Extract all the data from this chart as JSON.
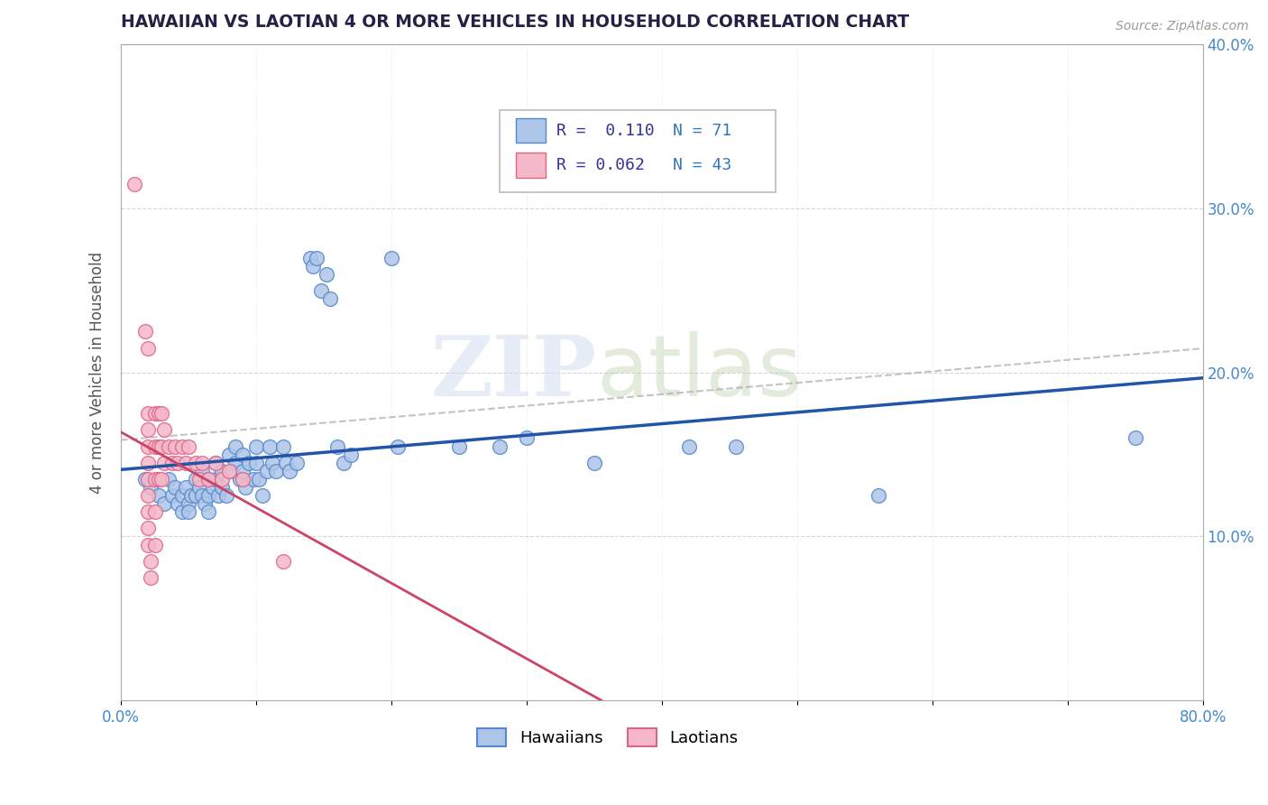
{
  "title": "HAWAIIAN VS LAOTIAN 4 OR MORE VEHICLES IN HOUSEHOLD CORRELATION CHART",
  "source": "Source: ZipAtlas.com",
  "ylabel": "4 or more Vehicles in Household",
  "xlim": [
    0.0,
    0.8
  ],
  "ylim": [
    0.0,
    0.4
  ],
  "xticks": [
    0.0,
    0.1,
    0.2,
    0.3,
    0.4,
    0.5,
    0.6,
    0.7,
    0.8
  ],
  "yticks": [
    0.0,
    0.1,
    0.2,
    0.3,
    0.4
  ],
  "legend_labels": [
    "Hawaiians",
    "Laotians"
  ],
  "legend_R_N": [
    [
      "R =  0.110",
      "N = 71"
    ],
    [
      "R = 0.062",
      "N = 43"
    ]
  ],
  "hawaiian_color": "#aec6e8",
  "laotian_color": "#f5b8c8",
  "hawaiian_edge_color": "#5588cc",
  "laotian_edge_color": "#dd6688",
  "hawaiian_line_color": "#2255aa",
  "laotian_line_color": "#cc4466",
  "watermark_zip": "ZIP",
  "watermark_atlas": "atlas",
  "hawaiian_scatter": [
    [
      0.018,
      0.135
    ],
    [
      0.022,
      0.13
    ],
    [
      0.028,
      0.125
    ],
    [
      0.032,
      0.12
    ],
    [
      0.035,
      0.135
    ],
    [
      0.038,
      0.125
    ],
    [
      0.04,
      0.13
    ],
    [
      0.042,
      0.12
    ],
    [
      0.045,
      0.125
    ],
    [
      0.045,
      0.115
    ],
    [
      0.048,
      0.13
    ],
    [
      0.05,
      0.12
    ],
    [
      0.05,
      0.115
    ],
    [
      0.052,
      0.125
    ],
    [
      0.055,
      0.135
    ],
    [
      0.055,
      0.125
    ],
    [
      0.058,
      0.13
    ],
    [
      0.06,
      0.14
    ],
    [
      0.06,
      0.125
    ],
    [
      0.062,
      0.12
    ],
    [
      0.065,
      0.135
    ],
    [
      0.065,
      0.125
    ],
    [
      0.065,
      0.115
    ],
    [
      0.068,
      0.13
    ],
    [
      0.07,
      0.145
    ],
    [
      0.07,
      0.135
    ],
    [
      0.072,
      0.125
    ],
    [
      0.075,
      0.14
    ],
    [
      0.075,
      0.13
    ],
    [
      0.078,
      0.125
    ],
    [
      0.08,
      0.15
    ],
    [
      0.082,
      0.14
    ],
    [
      0.085,
      0.155
    ],
    [
      0.085,
      0.145
    ],
    [
      0.088,
      0.135
    ],
    [
      0.09,
      0.15
    ],
    [
      0.09,
      0.14
    ],
    [
      0.092,
      0.13
    ],
    [
      0.095,
      0.145
    ],
    [
      0.098,
      0.135
    ],
    [
      0.1,
      0.155
    ],
    [
      0.1,
      0.145
    ],
    [
      0.102,
      0.135
    ],
    [
      0.105,
      0.125
    ],
    [
      0.108,
      0.14
    ],
    [
      0.11,
      0.155
    ],
    [
      0.112,
      0.145
    ],
    [
      0.115,
      0.14
    ],
    [
      0.12,
      0.155
    ],
    [
      0.122,
      0.145
    ],
    [
      0.125,
      0.14
    ],
    [
      0.13,
      0.145
    ],
    [
      0.14,
      0.27
    ],
    [
      0.142,
      0.265
    ],
    [
      0.145,
      0.27
    ],
    [
      0.148,
      0.25
    ],
    [
      0.152,
      0.26
    ],
    [
      0.155,
      0.245
    ],
    [
      0.16,
      0.155
    ],
    [
      0.165,
      0.145
    ],
    [
      0.17,
      0.15
    ],
    [
      0.2,
      0.27
    ],
    [
      0.205,
      0.155
    ],
    [
      0.25,
      0.155
    ],
    [
      0.28,
      0.155
    ],
    [
      0.3,
      0.16
    ],
    [
      0.35,
      0.145
    ],
    [
      0.42,
      0.155
    ],
    [
      0.455,
      0.155
    ],
    [
      0.56,
      0.125
    ],
    [
      0.75,
      0.16
    ]
  ],
  "laotian_scatter": [
    [
      0.01,
      0.315
    ],
    [
      0.018,
      0.225
    ],
    [
      0.02,
      0.215
    ],
    [
      0.02,
      0.175
    ],
    [
      0.02,
      0.165
    ],
    [
      0.02,
      0.155
    ],
    [
      0.02,
      0.145
    ],
    [
      0.02,
      0.135
    ],
    [
      0.02,
      0.125
    ],
    [
      0.02,
      0.115
    ],
    [
      0.02,
      0.105
    ],
    [
      0.02,
      0.095
    ],
    [
      0.022,
      0.085
    ],
    [
      0.022,
      0.075
    ],
    [
      0.025,
      0.175
    ],
    [
      0.025,
      0.155
    ],
    [
      0.025,
      0.135
    ],
    [
      0.025,
      0.115
    ],
    [
      0.025,
      0.095
    ],
    [
      0.028,
      0.175
    ],
    [
      0.028,
      0.155
    ],
    [
      0.028,
      0.135
    ],
    [
      0.03,
      0.175
    ],
    [
      0.03,
      0.155
    ],
    [
      0.03,
      0.135
    ],
    [
      0.032,
      0.165
    ],
    [
      0.032,
      0.145
    ],
    [
      0.035,
      0.155
    ],
    [
      0.038,
      0.145
    ],
    [
      0.04,
      0.155
    ],
    [
      0.042,
      0.145
    ],
    [
      0.045,
      0.155
    ],
    [
      0.048,
      0.145
    ],
    [
      0.05,
      0.155
    ],
    [
      0.055,
      0.145
    ],
    [
      0.058,
      0.135
    ],
    [
      0.06,
      0.145
    ],
    [
      0.065,
      0.135
    ],
    [
      0.07,
      0.145
    ],
    [
      0.075,
      0.135
    ],
    [
      0.08,
      0.14
    ],
    [
      0.09,
      0.135
    ],
    [
      0.12,
      0.085
    ]
  ]
}
